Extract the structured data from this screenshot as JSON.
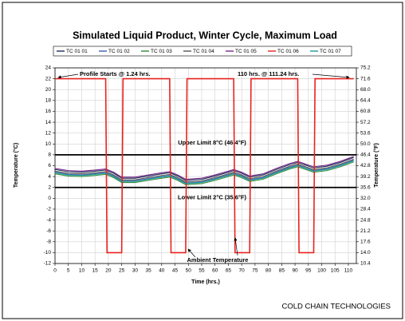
{
  "chart_data": {
    "type": "line",
    "title": "Simulated Liquid Product, Winter Cycle, Maximum Load",
    "xlabel": "Time (hrs.)",
    "ylabel": "Temperature (°C)",
    "y2label": "Temperature (°F)",
    "footer": "COLD CHAIN TECHNOLOGIES",
    "xlim": [
      0,
      113
    ],
    "xticks": [
      0,
      5,
      10,
      15,
      20,
      25,
      30,
      35,
      40,
      45,
      50,
      55,
      60,
      65,
      70,
      75,
      80,
      85,
      90,
      95,
      100,
      105,
      110
    ],
    "ylim": [
      -12,
      24
    ],
    "yticks": [
      -12,
      -10,
      -8,
      -6,
      -4,
      -2,
      0,
      2,
      4,
      6,
      8,
      10,
      12,
      14,
      16,
      18,
      20,
      22,
      24
    ],
    "y2lim": [
      10.4,
      75.2
    ],
    "y2ticks": [
      10.4,
      {
        "value": 14,
        "label": "14.0"
      },
      17.6,
      21.2,
      24.8,
      28.4,
      {
        "value": 32,
        "label": "32.0"
      },
      35.6,
      39.2,
      42.8,
      46.4,
      {
        "value": 50,
        "label": "50.0"
      },
      53.6,
      57.2,
      60.8,
      64.4,
      {
        "value": 68,
        "label": "68.0"
      },
      71.6,
      75.2
    ],
    "grid": true,
    "legend": "top",
    "x": [
      0,
      5,
      10,
      15,
      19,
      22,
      25,
      30,
      35,
      40,
      43,
      46,
      49,
      55,
      60,
      65,
      67,
      70,
      73,
      78,
      83,
      88,
      91,
      94,
      97,
      102,
      107,
      112
    ],
    "series": [
      {
        "name": "TC 01 01",
        "color": "#1f2a5a",
        "values": [
          5.3,
          4.9,
          4.8,
          5.0,
          5.2,
          4.6,
          3.7,
          3.7,
          4.1,
          4.5,
          4.7,
          4.1,
          3.3,
          3.5,
          4.1,
          4.8,
          5.1,
          4.6,
          3.9,
          4.3,
          5.3,
          6.2,
          6.6,
          6.1,
          5.6,
          5.9,
          6.6,
          7.5
        ]
      },
      {
        "name": "TC 01 02",
        "color": "#3a5fb0",
        "values": [
          4.8,
          4.4,
          4.3,
          4.5,
          4.7,
          4.1,
          3.2,
          3.2,
          3.6,
          4.0,
          4.2,
          3.6,
          2.8,
          3.0,
          3.6,
          4.3,
          4.6,
          4.1,
          3.4,
          3.8,
          4.8,
          5.7,
          6.1,
          5.6,
          5.1,
          5.4,
          6.1,
          7.0
        ]
      },
      {
        "name": "TC 01 03",
        "color": "#2e8b3a",
        "values": [
          4.5,
          4.1,
          4.0,
          4.2,
          4.4,
          3.8,
          2.9,
          2.9,
          3.3,
          3.7,
          3.9,
          3.3,
          2.5,
          2.7,
          3.3,
          4.0,
          4.3,
          3.8,
          3.1,
          3.5,
          4.5,
          5.4,
          5.8,
          5.3,
          4.8,
          5.1,
          5.8,
          6.7
        ]
      },
      {
        "name": "TC 01 04",
        "color": "#555555",
        "values": [
          5.0,
          4.6,
          4.5,
          4.7,
          4.9,
          4.3,
          3.4,
          3.4,
          3.8,
          4.2,
          4.4,
          3.8,
          3.0,
          3.2,
          3.8,
          4.5,
          4.8,
          4.3,
          3.6,
          4.0,
          5.0,
          5.9,
          6.3,
          5.8,
          5.3,
          5.6,
          6.3,
          7.2
        ]
      },
      {
        "name": "TC 01 05",
        "color": "#7a2a8a",
        "values": [
          5.5,
          5.1,
          5.0,
          5.2,
          5.4,
          4.8,
          3.9,
          3.9,
          4.3,
          4.7,
          4.9,
          4.3,
          3.5,
          3.7,
          4.3,
          5.0,
          5.3,
          4.8,
          4.1,
          4.5,
          5.5,
          6.4,
          6.8,
          6.3,
          5.8,
          6.1,
          6.8,
          7.7
        ]
      },
      {
        "name": "TC 01 06",
        "color": "#e8231f",
        "x": [
          0,
          19,
          19.5,
          25,
          25.5,
          43,
          43.5,
          49,
          49.5,
          67,
          67.5,
          73,
          73.5,
          91,
          91.5,
          97,
          97.5,
          112
        ],
        "values": [
          22,
          22,
          -10,
          -10,
          22,
          22,
          -10,
          -10,
          22,
          22,
          -10,
          -10,
          22,
          22,
          -10,
          -10,
          22,
          22
        ]
      },
      {
        "name": "TC 01 07",
        "color": "#1a9a9a",
        "values": [
          4.7,
          4.3,
          4.2,
          4.4,
          4.6,
          4.0,
          3.1,
          3.1,
          3.5,
          3.9,
          4.1,
          3.5,
          2.7,
          2.9,
          3.5,
          4.2,
          4.5,
          4.0,
          3.3,
          3.7,
          4.7,
          5.6,
          6.0,
          5.5,
          5.0,
          5.3,
          6.0,
          6.9
        ]
      }
    ],
    "hlines": [
      {
        "value": 8,
        "label": "Upper Limit 8°C (46.4°F)"
      },
      {
        "value": 2,
        "label": "Lower Limit 2°C (35.6°F)"
      }
    ],
    "annotations": [
      "Profile Starts @ 1.24 hrs.",
      "110 hrs. @ 111.24 hrs.",
      "Ambient Temperature"
    ]
  }
}
